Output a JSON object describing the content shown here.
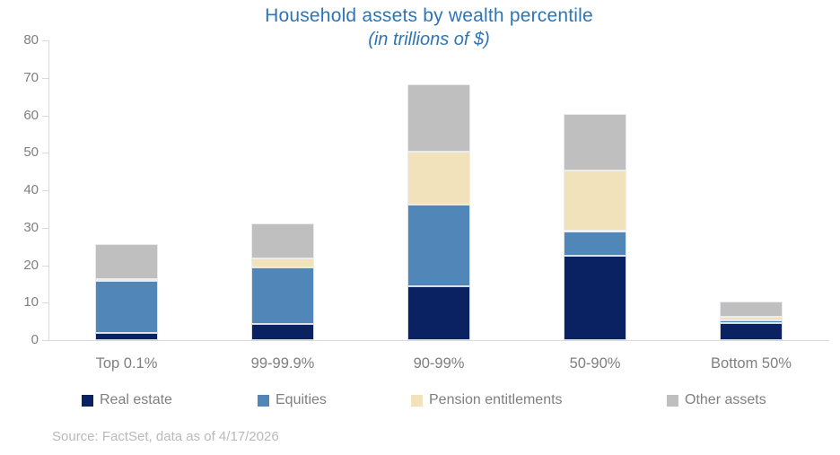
{
  "title": "Household assets by wealth percentile",
  "subtitle": "(in trillions of $)",
  "source": "Source: FactSet, data as of 4/17/2026",
  "colors": {
    "title_blue": "#2e75b6",
    "real_estate_navy": "#0a2162",
    "equities_blue": "#5187b8",
    "pension_cream": "#f2e2bb",
    "other_gray": "#bfbfbf",
    "axis_line": "#d9d9d9",
    "axis_text": "#7f7f7f",
    "source_text": "#b9b9b9"
  },
  "chart_data": {
    "type": "bar",
    "stacked": true,
    "title": "Household assets by wealth percentile",
    "subtitle": "(in trillions of $)",
    "xlabel": "",
    "ylabel": "",
    "categories": [
      "Top 0.1%",
      "99-99.9%",
      "90-99%",
      "50-90%",
      "Bottom 50%"
    ],
    "series": [
      {
        "name": "Real estate",
        "color": "#0a2162",
        "values": [
          1.8,
          4.3,
          14.4,
          22.4,
          4.5
        ]
      },
      {
        "name": "Equities",
        "color": "#5187b8",
        "values": [
          14.0,
          15.1,
          21.8,
          6.7,
          0.8
        ]
      },
      {
        "name": "Pension entitlements",
        "color": "#f2e2bb",
        "values": [
          0.6,
          2.5,
          14.2,
          16.1,
          1.0
        ]
      },
      {
        "name": "Other assets",
        "color": "#bfbfbf",
        "values": [
          9.3,
          9.2,
          17.8,
          15.2,
          3.9
        ]
      }
    ],
    "totals": [
      25.7,
      31.1,
      68.2,
      60.4,
      10.2
    ],
    "ylim": [
      0,
      80
    ],
    "yticks": [
      0,
      10,
      20,
      30,
      40,
      50,
      60,
      70,
      80
    ],
    "grid": false,
    "legend_position": "bottom"
  }
}
